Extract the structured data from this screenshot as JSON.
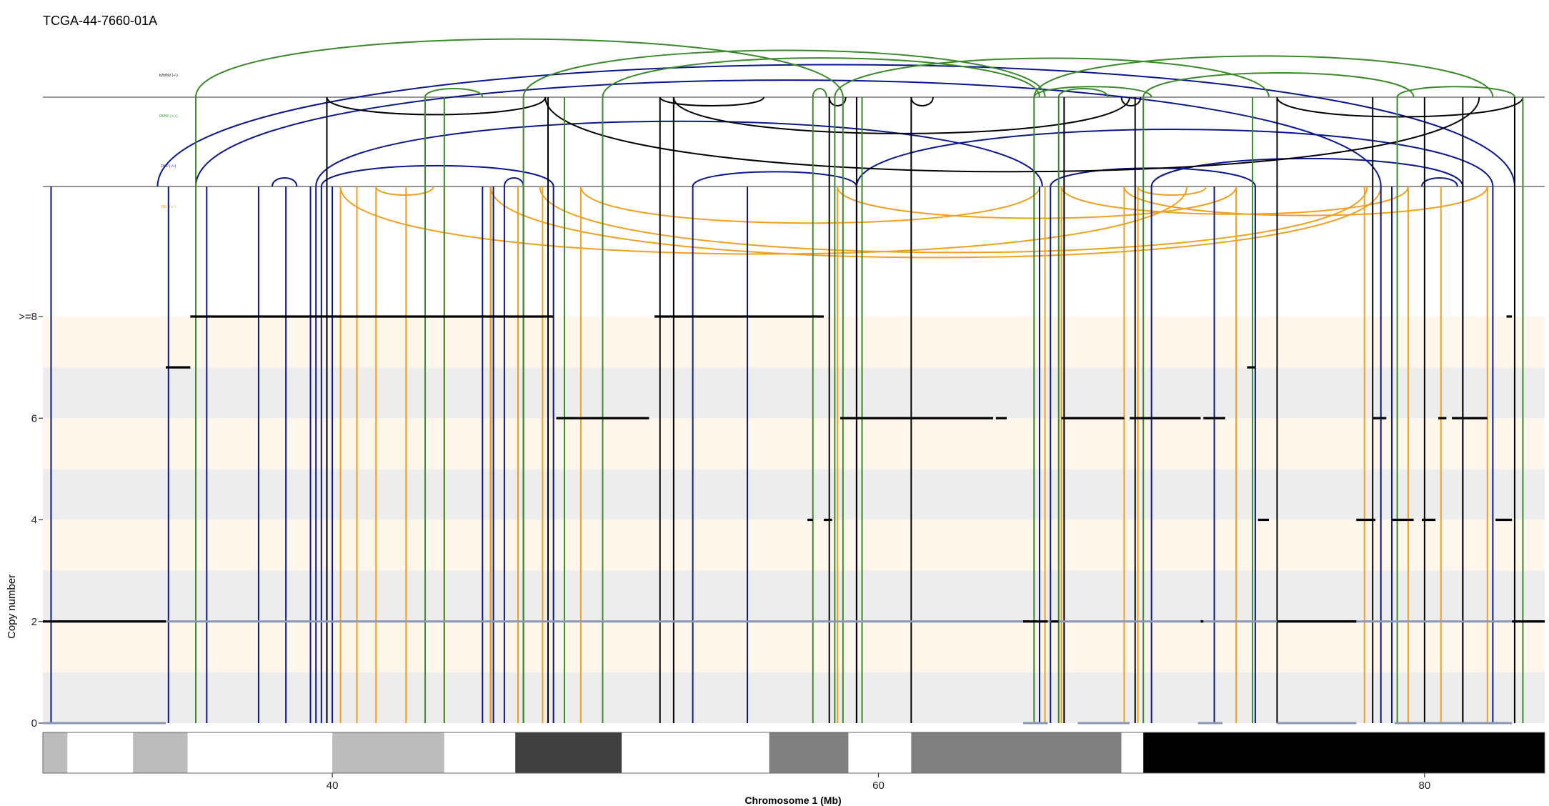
{
  "chart_data": {
    "type": "structural-variant-copy-number",
    "title": "TCGA-44-7660-01A",
    "xlabel": "Chromosome 1 (Mb)",
    "ylabel": "Copy number",
    "xlim": [
      29.4,
      84.4
    ],
    "ylim": [
      0,
      8
    ],
    "xticks": [
      {
        "value": 40,
        "label": "40"
      },
      {
        "value": 60,
        "label": "60"
      },
      {
        "value": 80,
        "label": "80"
      }
    ],
    "yticks": [
      {
        "value": 0,
        "label": "0"
      },
      {
        "value": 2,
        "label": "2"
      },
      {
        "value": 4,
        "label": "4"
      },
      {
        "value": 6,
        "label": "6"
      },
      {
        "value": 8,
        "label": ">=8"
      }
    ],
    "band_colors": {
      "odd": "#fff6ec",
      "even": "#ededed"
    },
    "sv_colors": {
      "h2hINV": "#000000",
      "t2tINV": "#3a8a2a",
      "DUP": "#0a168a",
      "DEL": "#f0a020"
    },
    "sv_legend": [
      "h2hINV (-/-)",
      "t2tINV (+/+)",
      "DUP (-/+)",
      "DEL (+/-)"
    ],
    "total_cn_segments": [
      {
        "start": 29.4,
        "end": 33.9,
        "cn": 2
      },
      {
        "start": 33.9,
        "end": 34.8,
        "cn": 7
      },
      {
        "start": 34.8,
        "end": 48.1,
        "cn": 8
      },
      {
        "start": 48.2,
        "end": 51.6,
        "cn": 6
      },
      {
        "start": 51.8,
        "end": 57.6,
        "cn": 8
      },
      {
        "start": 57.6,
        "end": 58.0,
        "cn": 8
      },
      {
        "start": 57.4,
        "end": 57.6,
        "cn": 4
      },
      {
        "start": 58.0,
        "end": 58.3,
        "cn": 4
      },
      {
        "start": 58.6,
        "end": 64.2,
        "cn": 6
      },
      {
        "start": 64.3,
        "end": 64.7,
        "cn": 6
      },
      {
        "start": 65.3,
        "end": 66.2,
        "cn": 2
      },
      {
        "start": 66.3,
        "end": 66.6,
        "cn": 2
      },
      {
        "start": 66.7,
        "end": 69.0,
        "cn": 6
      },
      {
        "start": 69.2,
        "end": 71.8,
        "cn": 6
      },
      {
        "start": 71.9,
        "end": 72.7,
        "cn": 6
      },
      {
        "start": 71.8,
        "end": 71.9,
        "cn": 2
      },
      {
        "start": 73.5,
        "end": 73.8,
        "cn": 7
      },
      {
        "start": 73.9,
        "end": 74.3,
        "cn": 4
      },
      {
        "start": 74.6,
        "end": 77.5,
        "cn": 2
      },
      {
        "start": 77.5,
        "end": 78.2,
        "cn": 4
      },
      {
        "start": 78.1,
        "end": 78.6,
        "cn": 6
      },
      {
        "start": 78.8,
        "end": 79.6,
        "cn": 4
      },
      {
        "start": 79.9,
        "end": 80.4,
        "cn": 4
      },
      {
        "start": 80.5,
        "end": 80.8,
        "cn": 6
      },
      {
        "start": 81.0,
        "end": 82.3,
        "cn": 6
      },
      {
        "start": 82.6,
        "end": 83.2,
        "cn": 4
      },
      {
        "start": 83.0,
        "end": 83.2,
        "cn": 8
      },
      {
        "start": 83.2,
        "end": 84.4,
        "cn": 2
      }
    ],
    "minor_cn_segments": [
      {
        "start": 29.4,
        "end": 33.9,
        "cn": 0
      },
      {
        "start": 33.9,
        "end": 84.4,
        "cn": 2
      },
      {
        "start": 65.3,
        "end": 66.2,
        "cn": 0
      },
      {
        "start": 67.3,
        "end": 69.2,
        "cn": 0
      },
      {
        "start": 71.7,
        "end": 72.6,
        "cn": 0
      },
      {
        "start": 74.6,
        "end": 77.5,
        "cn": 0
      },
      {
        "start": 78.9,
        "end": 83.2,
        "cn": 0
      }
    ],
    "dup_positions": [
      29.7,
      34.0,
      35.0,
      35.4,
      37.3,
      38.3,
      39.2,
      39.4,
      39.6,
      39.8,
      40.0,
      45.5,
      45.8,
      45.9,
      46.3,
      47.0,
      48.1,
      53.2,
      55.2,
      59.2,
      65.9,
      66.3,
      70.0,
      72.3,
      73.8,
      78.4,
      78.8,
      81.4,
      82.5
    ],
    "del_positions": [
      40.3,
      40.9,
      41.6,
      42.7,
      44.1,
      45.8,
      46.8,
      47.7,
      49.1,
      58.5,
      66.1,
      66.7,
      69.0,
      69.5,
      73.1,
      77.8,
      79.4,
      80.6,
      82.3
    ],
    "t2tinv_positions": [
      35.0,
      43.4,
      44.1,
      47.0,
      48.5,
      49.9,
      57.6,
      58.4,
      58.7,
      59.4,
      65.7,
      66.6,
      69.7,
      73.7,
      79.0,
      83.3,
      83.6
    ],
    "h2hinv_positions": [
      39.8,
      47.9,
      52.0,
      52.5,
      58.2,
      59.2,
      61.2,
      66.8,
      69.4,
      74.6,
      78.1,
      80.0,
      81.4,
      83.3
    ],
    "dup_arcs": [
      [
        35.0,
        78.4
      ],
      [
        37.8,
        38.7
      ],
      [
        39.6,
        48.1
      ],
      [
        46.3,
        47.0
      ],
      [
        53.2,
        59.2
      ],
      [
        59.2,
        82.5
      ],
      [
        66.3,
        73.8
      ],
      [
        70.0,
        81.4
      ],
      [
        79.9,
        81.2
      ],
      [
        33.6,
        83.3
      ],
      [
        39.4,
        66.0
      ]
    ],
    "del_arcs": [
      [
        40.3,
        71.3
      ],
      [
        41.6,
        43.7
      ],
      [
        45.8,
        78.4
      ],
      [
        49.1,
        65.9
      ],
      [
        47.6,
        77.9
      ],
      [
        58.5,
        73.1
      ],
      [
        69.5,
        72.0
      ],
      [
        66.7,
        79.4
      ],
      [
        69.0,
        82.3
      ]
    ],
    "t2tinv_arcs": [
      [
        35.0,
        58.7
      ],
      [
        43.4,
        45.5
      ],
      [
        47.0,
        66.1
      ],
      [
        49.9,
        65.9
      ],
      [
        57.6,
        58.1
      ],
      [
        58.4,
        74.3
      ],
      [
        65.7,
        70.0
      ],
      [
        66.6,
        68.4
      ],
      [
        69.7,
        79.6
      ],
      [
        65.7,
        82.5
      ],
      [
        79.0,
        83.3
      ]
    ],
    "h2hinv_arcs": [
      [
        39.8,
        47.8
      ],
      [
        52.0,
        55.8
      ],
      [
        52.5,
        69.2
      ],
      [
        47.8,
        82.0
      ],
      [
        58.2,
        58.8
      ],
      [
        74.6,
        83.6
      ],
      [
        61.2,
        62.0
      ],
      [
        68.9,
        69.6
      ]
    ],
    "ideogram": [
      {
        "start": 29.4,
        "end": 30.3,
        "shade": "#bcbcbc"
      },
      {
        "start": 30.3,
        "end": 32.7,
        "shade": "#ffffff"
      },
      {
        "start": 32.7,
        "end": 34.7,
        "shade": "#bcbcbc"
      },
      {
        "start": 34.7,
        "end": 40.0,
        "shade": "#ffffff"
      },
      {
        "start": 40.0,
        "end": 44.1,
        "shade": "#bcbcbc"
      },
      {
        "start": 44.1,
        "end": 46.7,
        "shade": "#ffffff"
      },
      {
        "start": 46.7,
        "end": 50.6,
        "shade": "#404040"
      },
      {
        "start": 50.6,
        "end": 56.0,
        "shade": "#ffffff"
      },
      {
        "start": 56.0,
        "end": 58.9,
        "shade": "#808080"
      },
      {
        "start": 58.9,
        "end": 61.2,
        "shade": "#ffffff"
      },
      {
        "start": 61.2,
        "end": 68.9,
        "shade": "#808080"
      },
      {
        "start": 68.9,
        "end": 69.7,
        "shade": "#ffffff"
      },
      {
        "start": 69.7,
        "end": 84.4,
        "shade": "#000000"
      }
    ]
  }
}
